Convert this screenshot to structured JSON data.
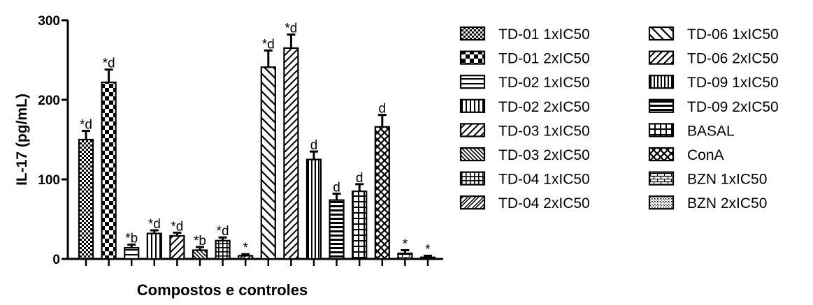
{
  "chart_data": {
    "type": "bar",
    "ylabel": "IL-17 (pg/mL)",
    "xlabel": "Compostos e controles",
    "ylim": [
      0,
      300
    ],
    "yticks": [
      "0",
      "100",
      "200",
      "300"
    ],
    "grid": false,
    "legend_position": "right",
    "categories": [
      "TD-01 1xIC50",
      "TD-01 2xIC50",
      "TD-02 1xIC50",
      "TD-02 2xIC50",
      "TD-03 1xIC50",
      "TD-03 2xIC50",
      "TD-04 1xIC50",
      "TD-04 2xIC50",
      "TD-06 1xIC50",
      "TD-06 2xIC50",
      "TD-09 1xIC50",
      "TD-09 2xIC50",
      "BASAL",
      "ConA",
      "BZN 1xIC50",
      "BZN 2xIC50"
    ],
    "values": [
      150,
      222,
      14,
      32,
      29,
      11,
      23,
      4,
      241,
      265,
      125,
      74,
      85,
      166,
      7,
      2
    ],
    "errors": [
      11,
      16,
      4,
      4,
      4,
      4,
      4,
      2,
      21,
      17,
      10,
      8,
      9,
      15,
      4,
      2
    ],
    "annotations": [
      "*d",
      "*d",
      "*b",
      "*d",
      "*d",
      "*b",
      "*d",
      "*",
      "*d",
      "*d",
      "d",
      "d",
      "d",
      "d",
      "*",
      "*"
    ],
    "patterns": [
      "checker-fine",
      "checker",
      "hlines",
      "vlines-wide",
      "diag-up",
      "diag-down-dense",
      "grid",
      "diag-up-double",
      "diag-down",
      "diag-up",
      "vlines",
      "hlines-dense",
      "grid-big",
      "cross-diag",
      "bricks",
      "dots"
    ],
    "legend": [
      "TD-01 1xIC50",
      "TD-01 2xIC50",
      "TD-02 1xIC50",
      "TD-02 2xIC50",
      "TD-03 1xIC50",
      "TD-03 2xIC50",
      "TD-04 1xIC50",
      "TD-04 2xIC50",
      "TD-06 1xIC50",
      "TD-06 2xIC50",
      "TD-09 1xIC50",
      "TD-09 2xIC50",
      "BASAL",
      "ConA",
      "BZN 1xIC50",
      "BZN 2xIC50"
    ]
  }
}
